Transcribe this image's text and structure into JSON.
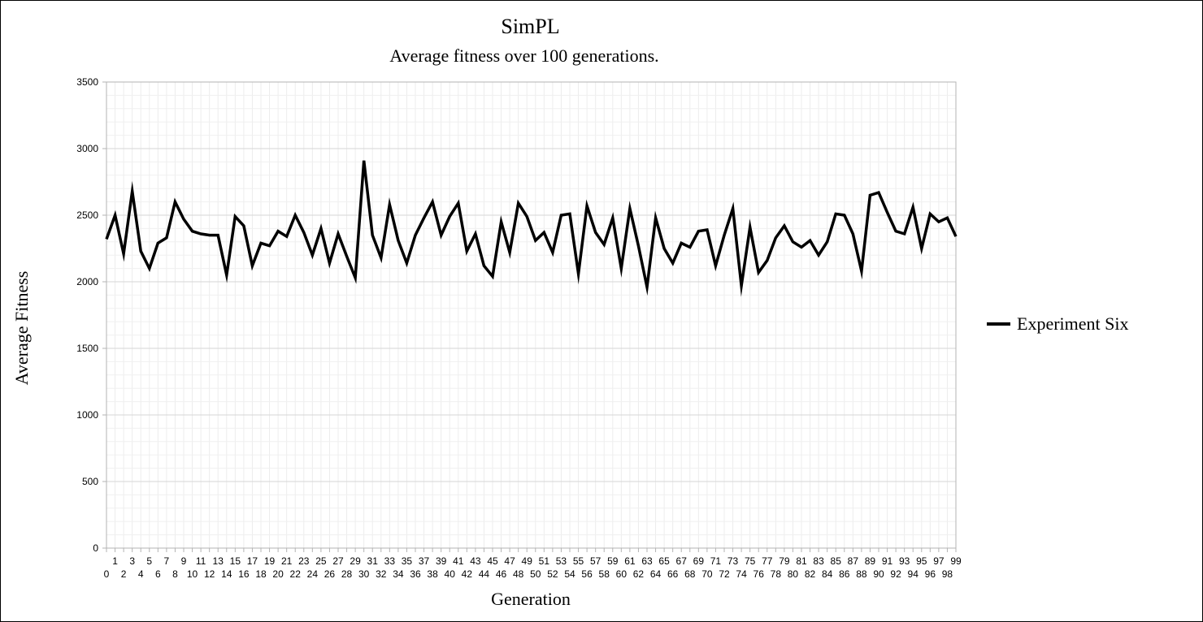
{
  "chart_data": {
    "type": "line",
    "title": "SimPL",
    "subtitle": "Average fitness over 100 generations.",
    "xlabel": "Generation",
    "ylabel": "Average Fitness",
    "x": [
      0,
      1,
      2,
      3,
      4,
      5,
      6,
      7,
      8,
      9,
      10,
      11,
      12,
      13,
      14,
      15,
      16,
      17,
      18,
      19,
      20,
      21,
      22,
      23,
      24,
      25,
      26,
      27,
      28,
      29,
      30,
      31,
      32,
      33,
      34,
      35,
      36,
      37,
      38,
      39,
      40,
      41,
      42,
      43,
      44,
      45,
      46,
      47,
      48,
      49,
      50,
      51,
      52,
      53,
      54,
      55,
      56,
      57,
      58,
      59,
      60,
      61,
      62,
      63,
      64,
      65,
      66,
      67,
      68,
      69,
      70,
      71,
      72,
      73,
      74,
      75,
      76,
      77,
      78,
      79,
      80,
      81,
      82,
      83,
      84,
      85,
      86,
      87,
      88,
      89,
      90,
      91,
      92,
      93,
      94,
      95,
      96,
      97,
      98,
      99
    ],
    "ylim": [
      0,
      3500
    ],
    "yticks": [
      0,
      500,
      1000,
      1500,
      2000,
      2500,
      3000,
      3500
    ],
    "grid": true,
    "legend_position": "right",
    "series": [
      {
        "name": "Experiment Six",
        "color": "#000000",
        "values": [
          2320,
          2500,
          2210,
          2680,
          2230,
          2100,
          2290,
          2330,
          2600,
          2470,
          2380,
          2360,
          2350,
          2350,
          2050,
          2490,
          2420,
          2120,
          2290,
          2270,
          2380,
          2340,
          2500,
          2370,
          2200,
          2400,
          2140,
          2360,
          2190,
          2030,
          2910,
          2350,
          2180,
          2580,
          2310,
          2140,
          2350,
          2480,
          2600,
          2350,
          2490,
          2590,
          2230,
          2360,
          2120,
          2040,
          2450,
          2220,
          2590,
          2490,
          2310,
          2370,
          2220,
          2500,
          2510,
          2060,
          2570,
          2370,
          2280,
          2480,
          2100,
          2550,
          2270,
          1960,
          2480,
          2250,
          2140,
          2290,
          2260,
          2380,
          2390,
          2120,
          2350,
          2550,
          1970,
          2410,
          2070,
          2160,
          2330,
          2420,
          2300,
          2260,
          2310,
          2200,
          2300,
          2510,
          2500,
          2360,
          2080,
          2650,
          2670,
          2520,
          2380,
          2360,
          2560,
          2250,
          2510,
          2450,
          2480,
          2340
        ]
      }
    ]
  }
}
